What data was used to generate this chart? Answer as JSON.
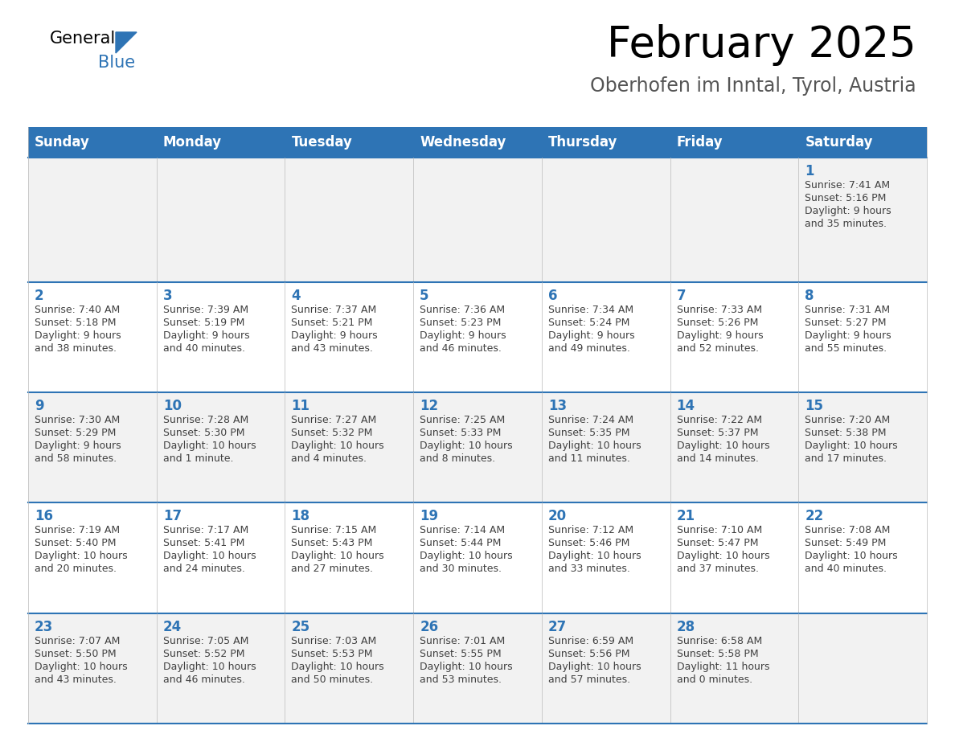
{
  "title": "February 2025",
  "subtitle": "Oberhofen im Inntal, Tyrol, Austria",
  "days_of_week": [
    "Sunday",
    "Monday",
    "Tuesday",
    "Wednesday",
    "Thursday",
    "Friday",
    "Saturday"
  ],
  "header_bg": "#2e74b5",
  "header_text": "#ffffff",
  "row_bg_odd": "#f2f2f2",
  "row_bg_even": "#ffffff",
  "separator_color": "#2e74b5",
  "day_num_color": "#2e74b5",
  "cell_text_color": "#404040",
  "calendar_data": [
    [
      null,
      null,
      null,
      null,
      null,
      null,
      {
        "day": 1,
        "sunrise": "7:41 AM",
        "sunset": "5:16 PM",
        "daylight": "9 hours and 35 minutes."
      }
    ],
    [
      {
        "day": 2,
        "sunrise": "7:40 AM",
        "sunset": "5:18 PM",
        "daylight": "9 hours and 38 minutes."
      },
      {
        "day": 3,
        "sunrise": "7:39 AM",
        "sunset": "5:19 PM",
        "daylight": "9 hours and 40 minutes."
      },
      {
        "day": 4,
        "sunrise": "7:37 AM",
        "sunset": "5:21 PM",
        "daylight": "9 hours and 43 minutes."
      },
      {
        "day": 5,
        "sunrise": "7:36 AM",
        "sunset": "5:23 PM",
        "daylight": "9 hours and 46 minutes."
      },
      {
        "day": 6,
        "sunrise": "7:34 AM",
        "sunset": "5:24 PM",
        "daylight": "9 hours and 49 minutes."
      },
      {
        "day": 7,
        "sunrise": "7:33 AM",
        "sunset": "5:26 PM",
        "daylight": "9 hours and 52 minutes."
      },
      {
        "day": 8,
        "sunrise": "7:31 AM",
        "sunset": "5:27 PM",
        "daylight": "9 hours and 55 minutes."
      }
    ],
    [
      {
        "day": 9,
        "sunrise": "7:30 AM",
        "sunset": "5:29 PM",
        "daylight": "9 hours and 58 minutes."
      },
      {
        "day": 10,
        "sunrise": "7:28 AM",
        "sunset": "5:30 PM",
        "daylight": "10 hours and 1 minute."
      },
      {
        "day": 11,
        "sunrise": "7:27 AM",
        "sunset": "5:32 PM",
        "daylight": "10 hours and 4 minutes."
      },
      {
        "day": 12,
        "sunrise": "7:25 AM",
        "sunset": "5:33 PM",
        "daylight": "10 hours and 8 minutes."
      },
      {
        "day": 13,
        "sunrise": "7:24 AM",
        "sunset": "5:35 PM",
        "daylight": "10 hours and 11 minutes."
      },
      {
        "day": 14,
        "sunrise": "7:22 AM",
        "sunset": "5:37 PM",
        "daylight": "10 hours and 14 minutes."
      },
      {
        "day": 15,
        "sunrise": "7:20 AM",
        "sunset": "5:38 PM",
        "daylight": "10 hours and 17 minutes."
      }
    ],
    [
      {
        "day": 16,
        "sunrise": "7:19 AM",
        "sunset": "5:40 PM",
        "daylight": "10 hours and 20 minutes."
      },
      {
        "day": 17,
        "sunrise": "7:17 AM",
        "sunset": "5:41 PM",
        "daylight": "10 hours and 24 minutes."
      },
      {
        "day": 18,
        "sunrise": "7:15 AM",
        "sunset": "5:43 PM",
        "daylight": "10 hours and 27 minutes."
      },
      {
        "day": 19,
        "sunrise": "7:14 AM",
        "sunset": "5:44 PM",
        "daylight": "10 hours and 30 minutes."
      },
      {
        "day": 20,
        "sunrise": "7:12 AM",
        "sunset": "5:46 PM",
        "daylight": "10 hours and 33 minutes."
      },
      {
        "day": 21,
        "sunrise": "7:10 AM",
        "sunset": "5:47 PM",
        "daylight": "10 hours and 37 minutes."
      },
      {
        "day": 22,
        "sunrise": "7:08 AM",
        "sunset": "5:49 PM",
        "daylight": "10 hours and 40 minutes."
      }
    ],
    [
      {
        "day": 23,
        "sunrise": "7:07 AM",
        "sunset": "5:50 PM",
        "daylight": "10 hours and 43 minutes."
      },
      {
        "day": 24,
        "sunrise": "7:05 AM",
        "sunset": "5:52 PM",
        "daylight": "10 hours and 46 minutes."
      },
      {
        "day": 25,
        "sunrise": "7:03 AM",
        "sunset": "5:53 PM",
        "daylight": "10 hours and 50 minutes."
      },
      {
        "day": 26,
        "sunrise": "7:01 AM",
        "sunset": "5:55 PM",
        "daylight": "10 hours and 53 minutes."
      },
      {
        "day": 27,
        "sunrise": "6:59 AM",
        "sunset": "5:56 PM",
        "daylight": "10 hours and 57 minutes."
      },
      {
        "day": 28,
        "sunrise": "6:58 AM",
        "sunset": "5:58 PM",
        "daylight": "11 hours and 0 minutes."
      },
      null
    ]
  ],
  "logo_text_general": "General",
  "logo_text_blue": "Blue",
  "title_fontsize": 38,
  "subtitle_fontsize": 17,
  "header_fontsize": 12,
  "day_num_fontsize": 12,
  "cell_fontsize": 9.0
}
